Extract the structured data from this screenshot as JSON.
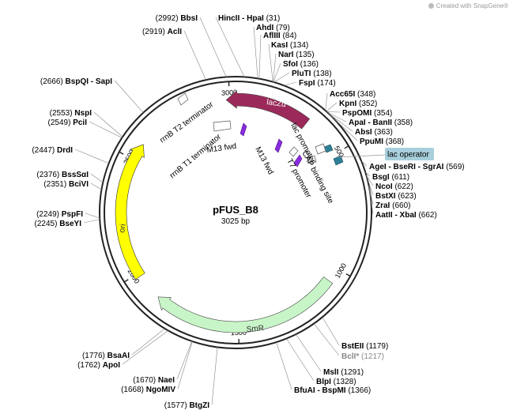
{
  "watermark": "Created with SnapGene®",
  "plasmid": {
    "name": "pFUS_B8",
    "size": "3025 bp",
    "total_bp": 3025
  },
  "colors": {
    "lacZa": "#9b2a5a",
    "ori": "#ffff00",
    "smr": "#c8f5c8",
    "m13": "#8a2be2",
    "cap": "#2f8096",
    "lac_operator_bg": "#a8cfdb"
  },
  "ticks": [
    {
      "bp": 500,
      "label": "500"
    },
    {
      "bp": 1000,
      "label": "1000"
    },
    {
      "bp": 1500,
      "label": "1500"
    },
    {
      "bp": 2000,
      "label": "2000"
    },
    {
      "bp": 2500,
      "label": "2500"
    },
    {
      "bp": 3000,
      "label": "3000"
    }
  ],
  "features": {
    "lacZa": "lacZα",
    "ori": "ori",
    "smr": "SmR",
    "lac_promoter": "lac promoter",
    "cap_site": "CAP binding site",
    "t7_promoter": "T7 promoter",
    "m13_fwd_a": "M13 fwd",
    "m13_fwd_b": "M13 fwd",
    "rrnb_t1": "rrnB T1 terminator",
    "rrnb_t2": "rrnB T2 terminator",
    "lac_operator": "lac operator"
  },
  "sites": [
    {
      "name": "HincII - HpaI",
      "pos": "(31)",
      "bp": 31
    },
    {
      "name": "AhdI",
      "pos": "(79)",
      "bp": 79
    },
    {
      "name": "AflIII",
      "pos": "(84)",
      "bp": 84
    },
    {
      "name": "KasI",
      "pos": "(134)",
      "bp": 134
    },
    {
      "name": "NarI",
      "pos": "(135)",
      "bp": 135
    },
    {
      "name": "SfoI",
      "pos": "(136)",
      "bp": 136
    },
    {
      "name": "PluTI",
      "pos": "(138)",
      "bp": 138
    },
    {
      "name": "FspI",
      "pos": "(174)",
      "bp": 174
    },
    {
      "name": "Acc65I",
      "pos": "(348)",
      "bp": 348
    },
    {
      "name": "KpnI",
      "pos": "(352)",
      "bp": 352
    },
    {
      "name": "PspOMI",
      "pos": "(354)",
      "bp": 354
    },
    {
      "name": "ApaI - BanII",
      "pos": "(358)",
      "bp": 358
    },
    {
      "name": "AbsI",
      "pos": "(363)",
      "bp": 363
    },
    {
      "name": "PpuMI",
      "pos": "(368)",
      "bp": 368
    },
    {
      "name": "AgeI - BseRI - SgrAI",
      "pos": "(569)",
      "bp": 569
    },
    {
      "name": "BsgI",
      "pos": "(611)",
      "bp": 611
    },
    {
      "name": "NcoI",
      "pos": "(622)",
      "bp": 622
    },
    {
      "name": "BstXI",
      "pos": "(623)",
      "bp": 623
    },
    {
      "name": "ZraI",
      "pos": "(660)",
      "bp": 660
    },
    {
      "name": "AatII - XbaI",
      "pos": "(662)",
      "bp": 662
    },
    {
      "name": "BstEII",
      "pos": "(1179)",
      "bp": 1179
    },
    {
      "name": "BclI*",
      "pos": "(1217)",
      "bp": 1217,
      "gray": true
    },
    {
      "name": "MslI",
      "pos": "(1291)",
      "bp": 1291
    },
    {
      "name": "BlpI",
      "pos": "(1328)",
      "bp": 1328
    },
    {
      "name": "BfuAI - BspMI",
      "pos": "(1366)",
      "bp": 1366
    },
    {
      "name": "BtgZI",
      "pos": "(1577)",
      "bp": 1577
    },
    {
      "name": "NgoMIV",
      "pos": "(1668)",
      "bp": 1668
    },
    {
      "name": "NaeI",
      "pos": "(1670)",
      "bp": 1670
    },
    {
      "name": "ApoI",
      "pos": "(1762)",
      "bp": 1762
    },
    {
      "name": "BsaAI",
      "pos": "(1776)",
      "bp": 1776
    },
    {
      "name": "BseYI",
      "pos": "(2245)",
      "bp": 2245
    },
    {
      "name": "PspFI",
      "pos": "(2249)",
      "bp": 2249
    },
    {
      "name": "BciVI",
      "pos": "(2351)",
      "bp": 2351
    },
    {
      "name": "BssSαI",
      "pos": "(2376)",
      "bp": 2376
    },
    {
      "name": "DrdI",
      "pos": "(2447)",
      "bp": 2447
    },
    {
      "name": "PciI",
      "pos": "(2549)",
      "bp": 2549
    },
    {
      "name": "NspI",
      "pos": "(2553)",
      "bp": 2553
    },
    {
      "name": "BspQI - SapI",
      "pos": "(2666)",
      "bp": 2666
    },
    {
      "name": "AclI",
      "pos": "(2919)",
      "bp": 2919
    },
    {
      "name": "BbsI",
      "pos": "(2992)",
      "bp": 2992
    }
  ]
}
